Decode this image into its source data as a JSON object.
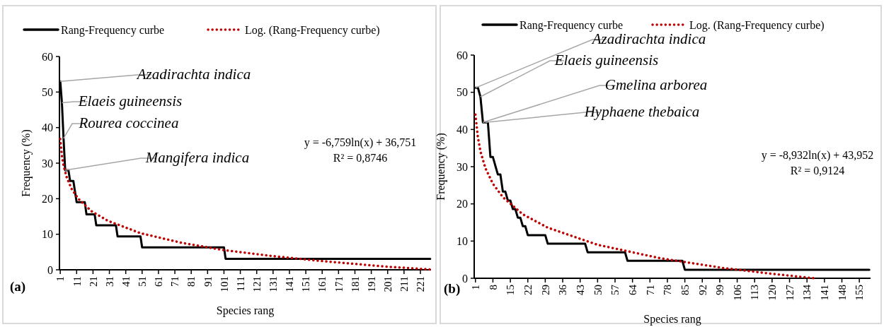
{
  "chart_data": [
    {
      "type": "line",
      "xlabel": "Species rang",
      "ylabel": "Frequency (%)",
      "legend": "top",
      "marker": "none",
      "xlim": [
        0.5,
        227.5
      ],
      "xticks": [
        1,
        11,
        21,
        31,
        41,
        51,
        61,
        71,
        81,
        91,
        101,
        111,
        121,
        131,
        141,
        151,
        161,
        171,
        181,
        191,
        201,
        211,
        221
      ],
      "ylim": [
        0,
        60
      ],
      "yticks": [
        0,
        10,
        20,
        30,
        40,
        50,
        60
      ],
      "grid": false,
      "series": [
        {
          "name": "Rang-Frequency curbe",
          "color": "#000000",
          "line_style": "solid",
          "x": [
            1,
            2,
            3,
            4,
            6,
            7,
            9,
            10,
            11,
            16,
            17,
            22,
            23,
            35,
            36,
            50,
            51,
            101,
            102,
            227
          ],
          "values": [
            53,
            47,
            37,
            28,
            28,
            25,
            25,
            22,
            19,
            19,
            15.6,
            15.6,
            12.5,
            12.5,
            9.4,
            9.4,
            6.3,
            6.3,
            3.1,
            3.1
          ]
        },
        {
          "name": "Log. (Rang-Frequency curbe)",
          "color": "#c00000",
          "line_style": "dotted",
          "x": [
            1,
            2,
            3,
            5,
            8,
            12,
            20,
            30,
            50,
            75,
            100,
            130,
            160,
            200,
            227
          ],
          "values": [
            36.8,
            32.1,
            29.3,
            25.9,
            22.7,
            20,
            16.5,
            13.8,
            10.3,
            7.6,
            5.6,
            3.9,
            2.5,
            0.9,
            0.1
          ]
        }
      ],
      "annotations": [
        "(a)",
        "y = -6,759ln(x) + 36,751",
        "R² = 0,8746",
        {
          "text": "Azadirachta indica",
          "x": 1,
          "y": 53
        },
        {
          "text": "Elaeis guineensis",
          "x": 2,
          "y": 47
        },
        {
          "text": "Rourea coccinea",
          "x": 3,
          "y": 37
        },
        {
          "text": "Mangifera indica",
          "x": 4,
          "y": 28
        }
      ]
    },
    {
      "type": "line",
      "xlabel": "Species rang",
      "ylabel": "Frequency (%)",
      "legend": "top",
      "marker": "none",
      "xlim": [
        0.5,
        159.5
      ],
      "xticks": [
        1,
        8,
        15,
        22,
        29,
        36,
        43,
        50,
        57,
        64,
        71,
        78,
        85,
        92,
        99,
        106,
        113,
        120,
        127,
        134,
        141,
        148,
        155
      ],
      "ylim": [
        0,
        60
      ],
      "yticks": [
        0,
        10,
        20,
        30,
        40,
        50,
        60
      ],
      "grid": false,
      "series": [
        {
          "name": "Rang-Frequency curbe",
          "color": "#000000",
          "line_style": "solid",
          "x": [
            1,
            2,
            3,
            4,
            6,
            7,
            8,
            9,
            10,
            11,
            12,
            13,
            14,
            15,
            16,
            17,
            18,
            19,
            20,
            21,
            22,
            29,
            30,
            45,
            46,
            61,
            62,
            84,
            85,
            159
          ],
          "values": [
            51.2,
            51.2,
            48.8,
            41.9,
            41.9,
            32.6,
            32.6,
            30.2,
            27.9,
            27.9,
            23.3,
            23.3,
            20.9,
            20.9,
            18.6,
            18.6,
            16.3,
            16.3,
            14,
            14,
            11.6,
            11.6,
            9.3,
            9.3,
            7,
            7,
            4.7,
            4.7,
            2.3,
            2.3
          ]
        },
        {
          "name": "Log. (Rang-Frequency curbe)",
          "color": "#c00000",
          "line_style": "dotted",
          "x": [
            1,
            2,
            3,
            5,
            8,
            12,
            20,
            30,
            50,
            75,
            100,
            120,
            137
          ],
          "values": [
            44,
            37.8,
            34.1,
            29.6,
            25.4,
            21.8,
            17.2,
            13.6,
            9,
            5.4,
            2.8,
            1.2,
            0
          ]
        }
      ],
      "annotations": [
        "(b)",
        "y = -8,932ln(x) + 43,952",
        "R² = 0,9124",
        {
          "text": "Azadirachta indica",
          "x": 1,
          "y": 51.2
        },
        {
          "text": "Elaeis guineensis",
          "x": 3,
          "y": 48.8
        },
        {
          "text": "Gmelina arborea",
          "x": 4,
          "y": 41.9
        },
        {
          "text": "Hyphaene thebaica",
          "x": 5,
          "y": 41.9
        }
      ]
    }
  ]
}
